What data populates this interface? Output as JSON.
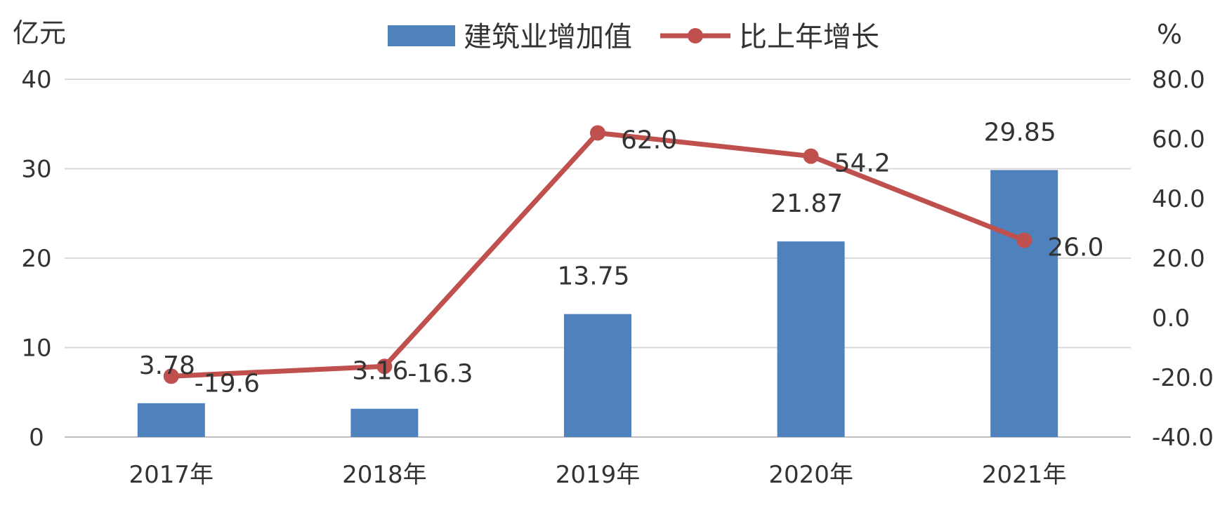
{
  "chart_data": {
    "type": "bar",
    "categories": [
      "2017年",
      "2018年",
      "2019年",
      "2020年",
      "2021年"
    ],
    "series": [
      {
        "name": "建筑业增加值",
        "type": "bar",
        "axis": "left",
        "values": [
          3.78,
          3.16,
          13.75,
          21.87,
          29.85
        ],
        "labels": [
          "3.78",
          "3.16",
          "13.75",
          "21.87",
          "29.85"
        ],
        "color": "#4F81BD"
      },
      {
        "name": "比上年增长",
        "type": "line",
        "axis": "right",
        "values": [
          -19.6,
          -16.3,
          62.0,
          54.2,
          26.0
        ],
        "labels": [
          "-19.6",
          "-16.3",
          "62.0",
          "54.2",
          "26.0"
        ],
        "color": "#C0504D"
      }
    ],
    "y_left": {
      "unit": "亿元",
      "range": [
        0,
        40
      ],
      "ticks": [
        "0",
        "10",
        "20",
        "30",
        "40"
      ]
    },
    "y_right": {
      "unit": "%",
      "range": [
        -40,
        80
      ],
      "ticks": [
        "-40.0",
        "-20.0",
        "0.0",
        "20.0",
        "40.0",
        "60.0",
        "80.0"
      ]
    },
    "grid": true,
    "legend_position": "top"
  }
}
